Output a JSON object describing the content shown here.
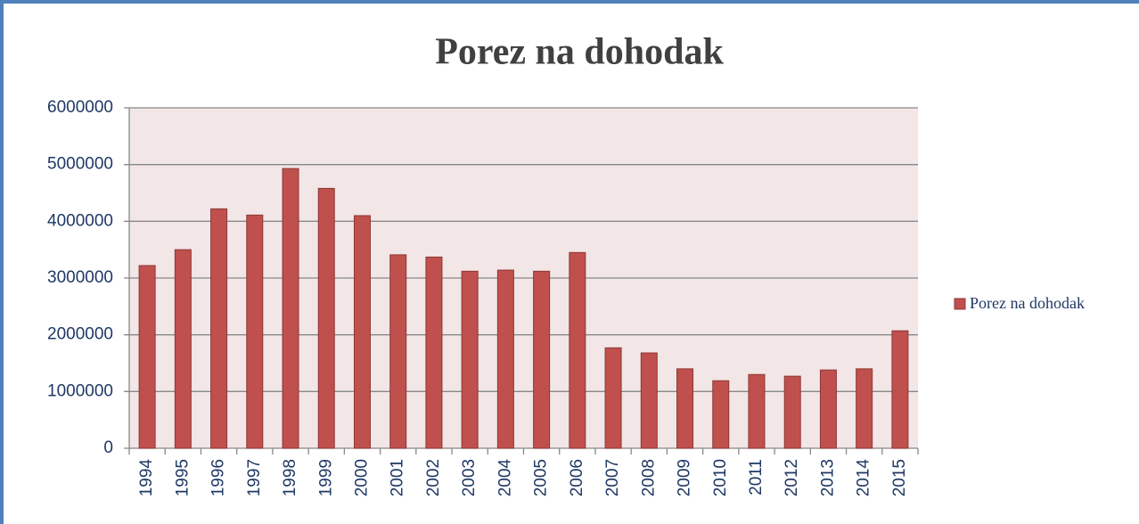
{
  "chart_data": {
    "type": "bar",
    "title": "Porez na dohodak",
    "categories": [
      "1994",
      "1995",
      "1996",
      "1997",
      "1998",
      "1999",
      "2000",
      "2001",
      "2002",
      "2003",
      "2004",
      "2005",
      "2006",
      "2007",
      "2008",
      "2009",
      "2010",
      "2011",
      "2012",
      "2013",
      "2014",
      "2015"
    ],
    "series": [
      {
        "name": "Porez na dohodak",
        "color": "#c0504d",
        "values": [
          3220000,
          3500000,
          4220000,
          4110000,
          4930000,
          4580000,
          4100000,
          3410000,
          3370000,
          3120000,
          3140000,
          3120000,
          3450000,
          1770000,
          1680000,
          1400000,
          1190000,
          1300000,
          1270000,
          1380000,
          1400000,
          2070000
        ]
      }
    ],
    "ylim": [
      0,
      6000000
    ],
    "yticks": [
      0,
      1000000,
      2000000,
      3000000,
      4000000,
      5000000,
      6000000
    ],
    "grid": true,
    "legend": "right"
  }
}
